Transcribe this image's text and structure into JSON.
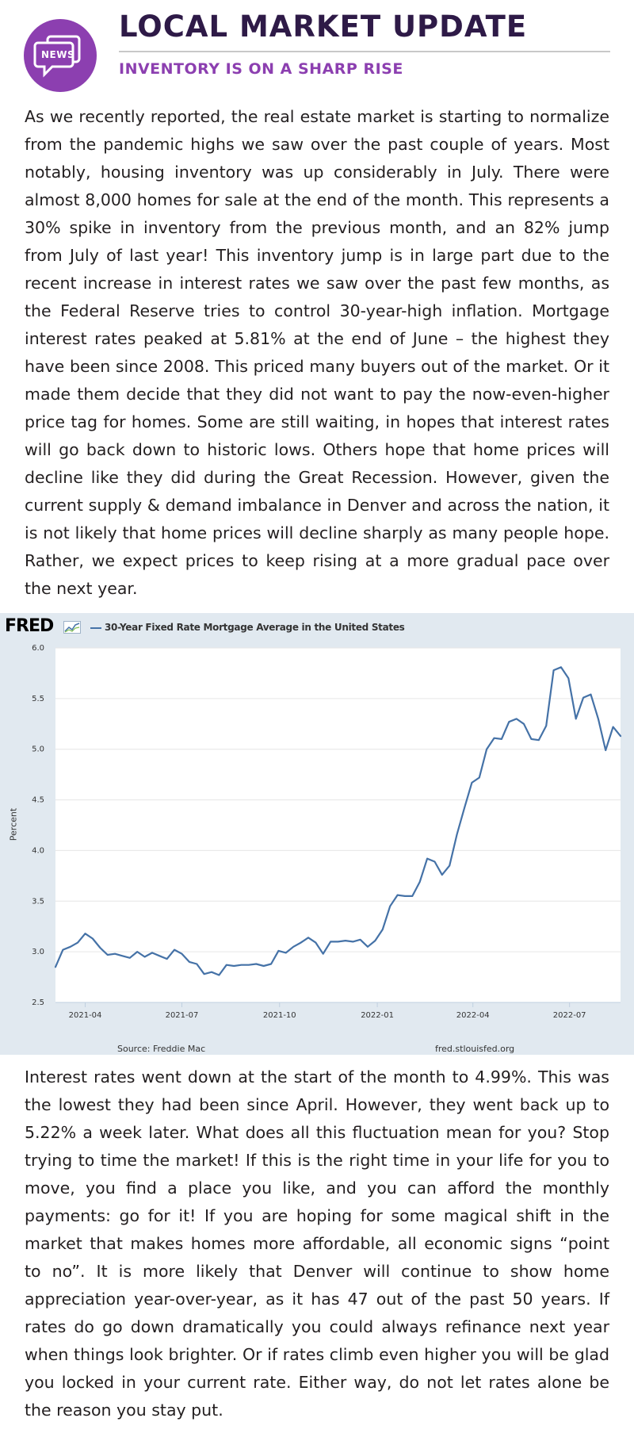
{
  "header": {
    "badge_label": "NEWS",
    "title": "LOCAL MARKET UPDATE",
    "subtitle": "INVENTORY IS ON A SHARP RISE"
  },
  "paragraphs": [
    "As we recently reported, the real estate market is starting to normalize from the pandemic highs we saw over the past couple of years. Most notably, housing inventory was up considerably in July. There were almost 8,000 homes for sale at the end of the month. This represents a 30% spike in inventory from the previous month, and an 82% jump from July of last year! This inventory jump is in large part due to the recent increase in interest rates we saw over the past few months, as the Federal Reserve tries to control 30-year-high inflation. Mortgage interest rates peaked at 5.81% at the end of June – the highest they have been since 2008. This priced many buyers out of the market. Or it made them decide that they did not want to pay the now-even-higher price tag for homes. Some are still waiting, in hopes that interest rates will go back down to historic lows. Others hope that home prices will decline like they did during the Great Recession. However, given the current supply & demand imbalance in Denver and across the nation, it is not likely that home prices will decline sharply as many people hope. Rather, we expect prices to keep rising at a more gradual pace over the next year.",
    "Interest rates went down at the start of the month to 4.99%. This was the lowest they had been since April. However, they went back up to 5.22% a week later. What does all this fluctuation mean for you? Stop trying to time the market! If this is the right time in your life for you to move, you find a place you like, and you can afford the monthly payments: go for it! If you are hoping for some magical shift in the market that makes homes more affordable, all economic signs “point to no”. It is more likely that Denver will continue to show home appreciation year-over-year, as it has 47 out of the past 50 years. If rates do go down dramatically you could always refinance next year when things look brighter. Or if rates climb even higher you will be glad you locked in your current rate. Either way, do not let rates alone be the reason you stay put."
  ],
  "chart_panel": {
    "logo": "FRED",
    "logo_icon": "line-chart-icon",
    "source": "Source: Freddie Mac",
    "url": "fred.stlouisfed.org"
  },
  "chart_data": {
    "type": "line",
    "title": "",
    "xlabel": "",
    "ylabel": "Percent",
    "ylim": [
      2.5,
      6.0
    ],
    "yticks": [
      "2.5",
      "3.0",
      "3.5",
      "4.0",
      "4.5",
      "5.0",
      "5.5",
      "6.0"
    ],
    "xticks": [
      {
        "label": "2021-04",
        "date": "2021-04-01"
      },
      {
        "label": "2021-07",
        "date": "2021-07-01"
      },
      {
        "label": "2021-10",
        "date": "2021-10-01"
      },
      {
        "label": "2022-01",
        "date": "2022-01-01"
      },
      {
        "label": "2022-04",
        "date": "2022-04-01"
      },
      {
        "label": "2022-07",
        "date": "2022-07-01"
      }
    ],
    "xlim": [
      "2021-03-04",
      "2022-08-18"
    ],
    "grid": true,
    "legend_position": "top",
    "line_color": "#4572a7",
    "series": [
      {
        "name": "30-Year Fixed Rate Mortgage Average in the United States",
        "points": [
          [
            "2021-03-04",
            2.85
          ],
          [
            "2021-03-11",
            3.02
          ],
          [
            "2021-03-18",
            3.05
          ],
          [
            "2021-03-25",
            3.09
          ],
          [
            "2021-04-01",
            3.18
          ],
          [
            "2021-04-08",
            3.13
          ],
          [
            "2021-04-15",
            3.04
          ],
          [
            "2021-04-22",
            2.97
          ],
          [
            "2021-04-29",
            2.98
          ],
          [
            "2021-05-06",
            2.96
          ],
          [
            "2021-05-13",
            2.94
          ],
          [
            "2021-05-20",
            3.0
          ],
          [
            "2021-05-27",
            2.95
          ],
          [
            "2021-06-03",
            2.99
          ],
          [
            "2021-06-10",
            2.96
          ],
          [
            "2021-06-17",
            2.93
          ],
          [
            "2021-06-24",
            3.02
          ],
          [
            "2021-07-01",
            2.98
          ],
          [
            "2021-07-08",
            2.9
          ],
          [
            "2021-07-15",
            2.88
          ],
          [
            "2021-07-22",
            2.78
          ],
          [
            "2021-07-29",
            2.8
          ],
          [
            "2021-08-05",
            2.77
          ],
          [
            "2021-08-12",
            2.87
          ],
          [
            "2021-08-19",
            2.86
          ],
          [
            "2021-08-26",
            2.87
          ],
          [
            "2021-09-02",
            2.87
          ],
          [
            "2021-09-09",
            2.88
          ],
          [
            "2021-09-16",
            2.86
          ],
          [
            "2021-09-23",
            2.88
          ],
          [
            "2021-09-30",
            3.01
          ],
          [
            "2021-10-07",
            2.99
          ],
          [
            "2021-10-14",
            3.05
          ],
          [
            "2021-10-21",
            3.09
          ],
          [
            "2021-10-28",
            3.14
          ],
          [
            "2021-11-04",
            3.09
          ],
          [
            "2021-11-11",
            2.98
          ],
          [
            "2021-11-18",
            3.1
          ],
          [
            "2021-11-25",
            3.1
          ],
          [
            "2021-12-02",
            3.11
          ],
          [
            "2021-12-09",
            3.1
          ],
          [
            "2021-12-16",
            3.12
          ],
          [
            "2021-12-23",
            3.05
          ],
          [
            "2021-12-30",
            3.11
          ],
          [
            "2022-01-06",
            3.22
          ],
          [
            "2022-01-13",
            3.45
          ],
          [
            "2022-01-20",
            3.56
          ],
          [
            "2022-01-27",
            3.55
          ],
          [
            "2022-02-03",
            3.55
          ],
          [
            "2022-02-10",
            3.69
          ],
          [
            "2022-02-17",
            3.92
          ],
          [
            "2022-02-24",
            3.89
          ],
          [
            "2022-03-03",
            3.76
          ],
          [
            "2022-03-10",
            3.85
          ],
          [
            "2022-03-17",
            4.16
          ],
          [
            "2022-03-24",
            4.42
          ],
          [
            "2022-03-31",
            4.67
          ],
          [
            "2022-04-07",
            4.72
          ],
          [
            "2022-04-14",
            5.0
          ],
          [
            "2022-04-21",
            5.11
          ],
          [
            "2022-04-28",
            5.1
          ],
          [
            "2022-05-05",
            5.27
          ],
          [
            "2022-05-12",
            5.3
          ],
          [
            "2022-05-19",
            5.25
          ],
          [
            "2022-05-26",
            5.1
          ],
          [
            "2022-06-02",
            5.09
          ],
          [
            "2022-06-09",
            5.23
          ],
          [
            "2022-06-16",
            5.78
          ],
          [
            "2022-06-23",
            5.81
          ],
          [
            "2022-06-30",
            5.7
          ],
          [
            "2022-07-07",
            5.3
          ],
          [
            "2022-07-14",
            5.51
          ],
          [
            "2022-07-21",
            5.54
          ],
          [
            "2022-07-28",
            5.3
          ],
          [
            "2022-08-04",
            4.99
          ],
          [
            "2022-08-11",
            5.22
          ],
          [
            "2022-08-18",
            5.13
          ]
        ]
      }
    ]
  }
}
